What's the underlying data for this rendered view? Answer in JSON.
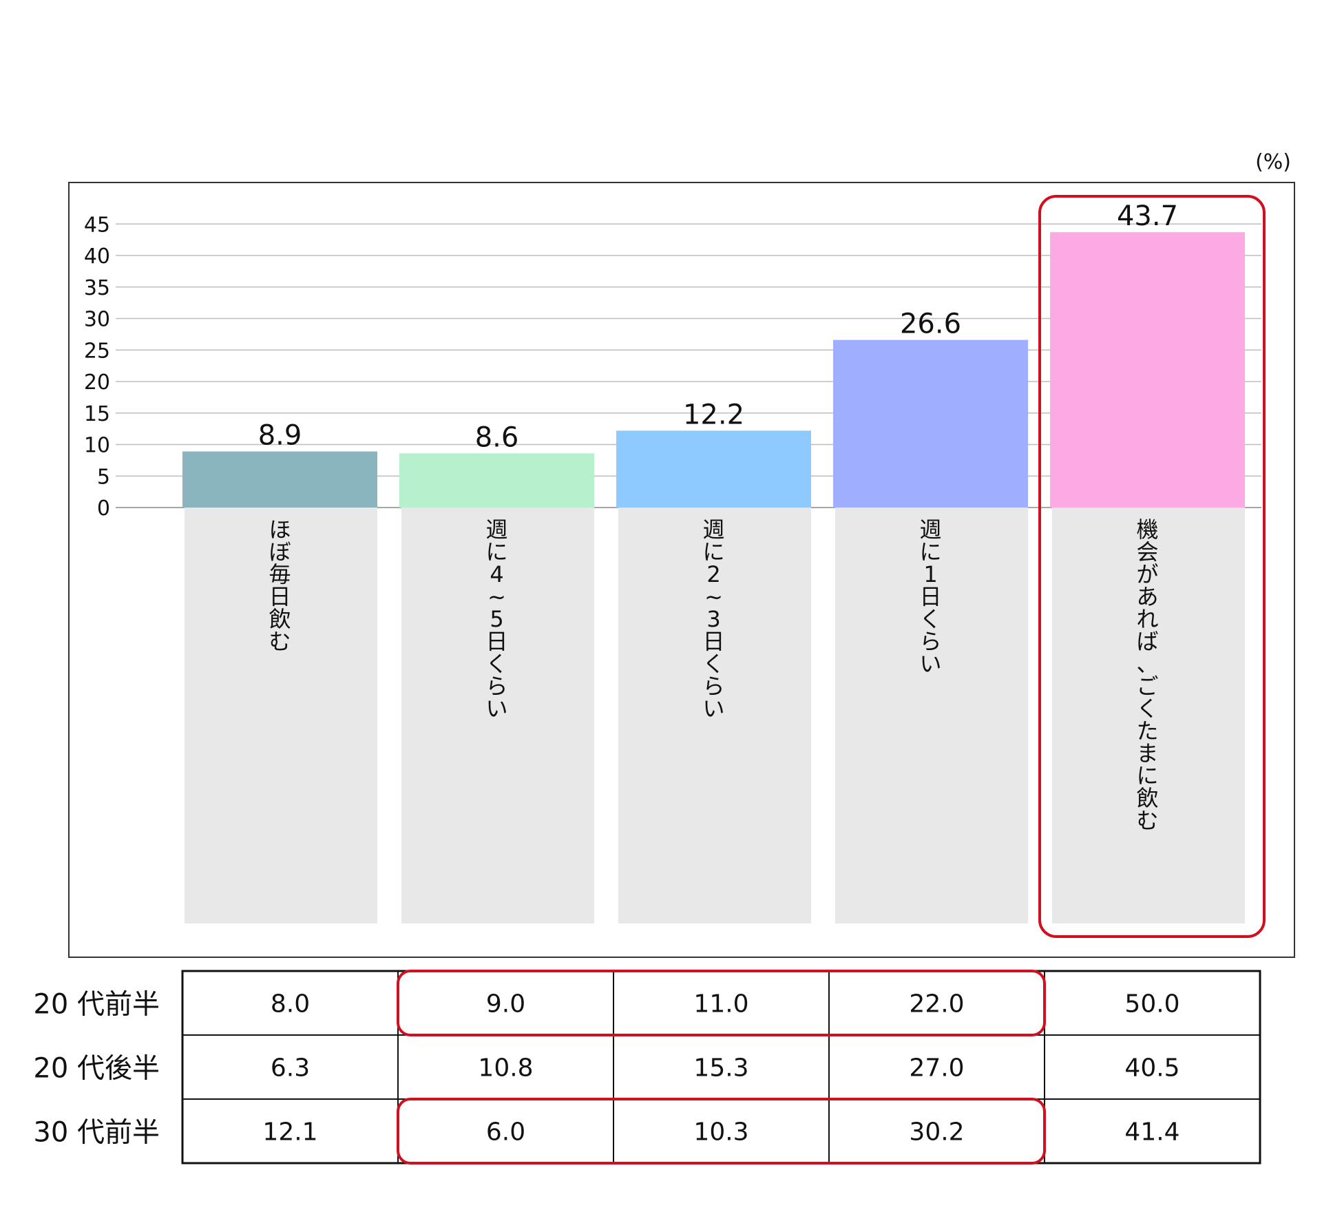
{
  "unit": "(%)",
  "colors": {
    "highlight": "#d0101e",
    "category_background": "#e8e8e8",
    "gridline": "#bdbdbd"
  },
  "chart_data": {
    "type": "bar",
    "categories": [
      "ほぼ毎日飲む",
      "週に4~5日くらい",
      "週に2~3日くらい",
      "週に1日くらい",
      "機会があれば、ごくたまに飲む"
    ],
    "values": [
      8.9,
      8.6,
      12.2,
      26.6,
      43.7
    ],
    "value_labels": [
      "8.9",
      "8.6",
      "12.2",
      "26.6",
      "43.7"
    ],
    "bar_colors": [
      "#8ab4be",
      "#b7f0cc",
      "#8ecaff",
      "#a0aeff",
      "#fdaae4"
    ],
    "y_ticks": [
      0,
      5,
      10,
      15,
      20,
      25,
      30,
      35,
      40,
      45
    ],
    "ylim": [
      0,
      45
    ],
    "grid": true,
    "highlighted_category": "機会があれば、ごくたまに飲む"
  },
  "table": {
    "rows": [
      {
        "label": "20 代前半",
        "values": [
          "8.0",
          "9.0",
          "11.0",
          "22.0",
          "50.0"
        ]
      },
      {
        "label": "20 代後半",
        "values": [
          "6.3",
          "10.8",
          "15.3",
          "27.0",
          "40.5"
        ]
      },
      {
        "label": "30 代前半",
        "values": [
          "12.1",
          "6.0",
          "10.3",
          "30.2",
          "41.4"
        ]
      }
    ],
    "highlighted_rows": [
      "20 代前半",
      "30 代前半"
    ],
    "highlighted_columns": [
      "週に4~5日くらい",
      "週に2~3日くらい",
      "週に1日くらい"
    ]
  }
}
